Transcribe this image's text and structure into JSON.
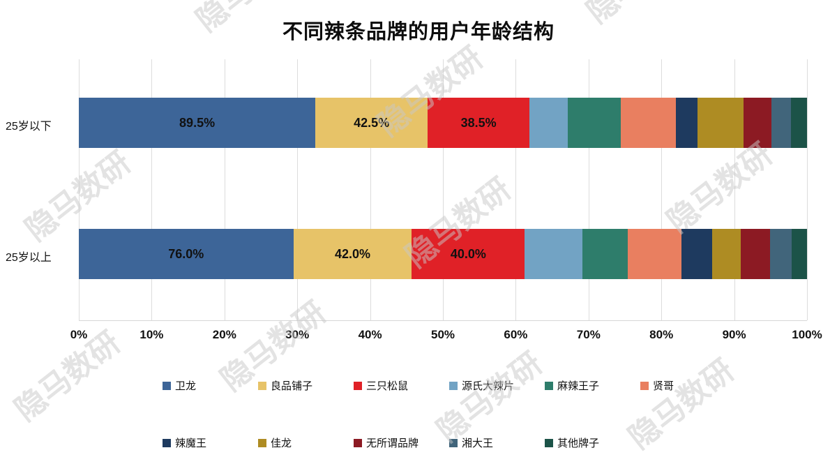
{
  "title": "不同辣条品牌的用户年龄结构",
  "watermark": {
    "text": "隐马数研"
  },
  "chart_data": {
    "type": "bar",
    "subtype": "horizontal-stacked-normalized-100pct",
    "title": "不同辣条品牌的用户年龄结构",
    "categories": [
      "25岁以下",
      "25岁以上"
    ],
    "series": [
      {
        "name": "卫龙",
        "color": "#3D6598",
        "values": [
          89.5,
          76.0
        ],
        "labeled": true
      },
      {
        "name": "良品铺子",
        "color": "#E7C368",
        "values": [
          42.5,
          42.0
        ],
        "labeled": true
      },
      {
        "name": "三只松鼠",
        "color": "#E02127",
        "values": [
          38.5,
          40.0
        ],
        "labeled": true
      },
      {
        "name": "源氏大辣片",
        "color": "#72A3C4",
        "values": [
          14.5,
          20.5
        ],
        "labeled": false
      },
      {
        "name": "麻辣王子",
        "color": "#2E7D6B",
        "values": [
          20.0,
          16.0
        ],
        "labeled": false
      },
      {
        "name": "贤哥",
        "color": "#E97F60",
        "values": [
          21.0,
          19.0
        ],
        "labeled": false
      },
      {
        "name": "辣魔王",
        "color": "#1E3A5F",
        "values": [
          8.0,
          11.0
        ],
        "labeled": false
      },
      {
        "name": "佳龙",
        "color": "#AE8C23",
        "values": [
          17.5,
          10.0
        ],
        "labeled": false
      },
      {
        "name": "无所谓品牌",
        "color": "#8C1A23",
        "values": [
          10.5,
          10.5
        ],
        "labeled": false
      },
      {
        "name": "湘大王",
        "color": "#41657B",
        "values": [
          7.5,
          7.5
        ],
        "labeled": false
      },
      {
        "name": "其他牌子",
        "color": "#1C5348",
        "values": [
          6.0,
          5.5
        ],
        "labeled": false
      }
    ],
    "x_axis": {
      "range": [
        0,
        100
      ],
      "ticks": [
        "0%",
        "10%",
        "20%",
        "30%",
        "40%",
        "50%",
        "60%",
        "70%",
        "80%",
        "90%",
        "100%"
      ]
    },
    "data_label_format": "one-decimal-percent",
    "legend": {
      "position": "bottom",
      "rows": [
        [
          "卫龙",
          "良品铺子",
          "三只松鼠",
          "源氏大辣片",
          "麻辣王子",
          "贤哥"
        ],
        [
          "辣魔王",
          "佳龙",
          "无所谓品牌",
          "湘大王",
          "其他牌子"
        ]
      ]
    }
  }
}
